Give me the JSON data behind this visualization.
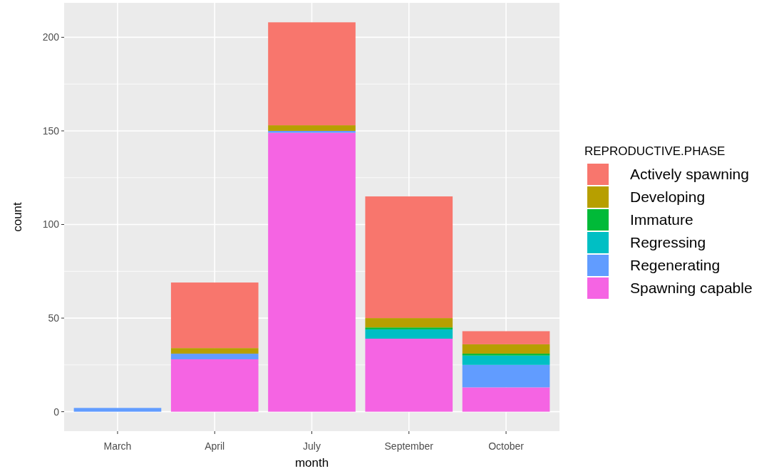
{
  "chart_data": {
    "type": "bar",
    "stacked": true,
    "xlabel": "month",
    "ylabel": "count",
    "legend_title": "REPRODUCTIVE.PHASE",
    "legend": "right",
    "grid": true,
    "categories": [
      "March",
      "April",
      "July",
      "September",
      "October"
    ],
    "ylim": [
      -10.4,
      218.4
    ],
    "yticks": [
      0,
      50,
      100,
      150,
      200
    ],
    "series": [
      {
        "name": "Spawning capable",
        "color": "#f564e3",
        "values": [
          null,
          28,
          149,
          39,
          13
        ]
      },
      {
        "name": "Regenerating",
        "color": "#619cff",
        "values": [
          2,
          3,
          1,
          null,
          12
        ]
      },
      {
        "name": "Regressing",
        "color": "#00bfc4",
        "values": [
          null,
          null,
          null,
          5,
          5
        ]
      },
      {
        "name": "Immature",
        "color": "#00ba38",
        "values": [
          null,
          null,
          null,
          1,
          1
        ]
      },
      {
        "name": "Developing",
        "color": "#b79f00",
        "values": [
          null,
          3,
          3,
          5,
          5
        ]
      },
      {
        "name": "Actively spawning",
        "color": "#f8766d",
        "values": [
          null,
          35,
          55,
          65,
          7
        ]
      }
    ]
  }
}
